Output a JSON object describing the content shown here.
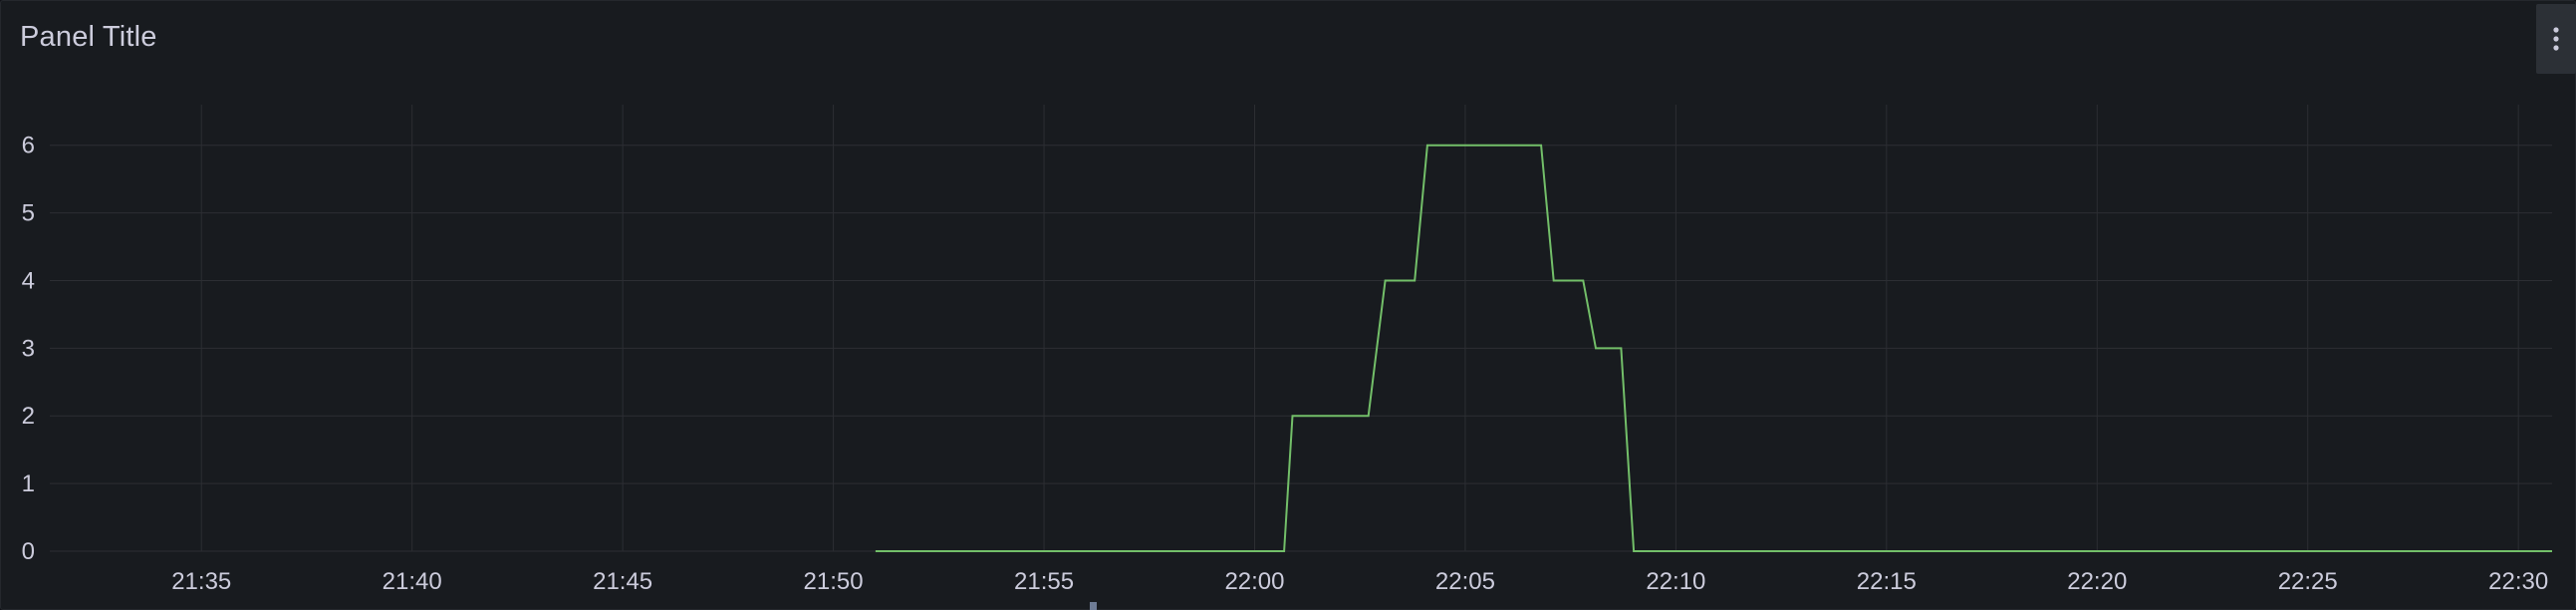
{
  "panel": {
    "title": "Panel Title",
    "menu_icon": "more-vertical-icon"
  },
  "colors": {
    "background": "#181b1f",
    "series": "#73bf69",
    "grid": "#2c2e33",
    "text": "#ccccdc"
  },
  "chart_data": {
    "type": "line",
    "title": "",
    "xlabel": "",
    "ylabel": "",
    "grid": true,
    "legend": "none",
    "xlim": [
      "21:31:24",
      "22:30:48"
    ],
    "ylim": [
      0,
      6.6
    ],
    "x_ticks": [
      "21:35",
      "21:40",
      "21:45",
      "21:50",
      "21:55",
      "22:00",
      "22:05",
      "22:10",
      "22:15",
      "22:20",
      "22:25",
      "22:30"
    ],
    "y_ticks": [
      0,
      1,
      2,
      3,
      4,
      5,
      6
    ],
    "series": [
      {
        "color": "#73bf69",
        "points": [
          [
            "21:51:00",
            0
          ],
          [
            "22:00:42",
            0
          ],
          [
            "22:00:54",
            2
          ],
          [
            "22:02:42",
            2
          ],
          [
            "22:03:06",
            4
          ],
          [
            "22:03:48",
            4
          ],
          [
            "22:04:06",
            6
          ],
          [
            "22:06:48",
            6
          ],
          [
            "22:07:06",
            4
          ],
          [
            "22:07:48",
            4
          ],
          [
            "22:08:06",
            3
          ],
          [
            "22:08:42",
            3
          ],
          [
            "22:09:00",
            0
          ],
          [
            "22:30:48",
            0
          ]
        ]
      }
    ]
  }
}
